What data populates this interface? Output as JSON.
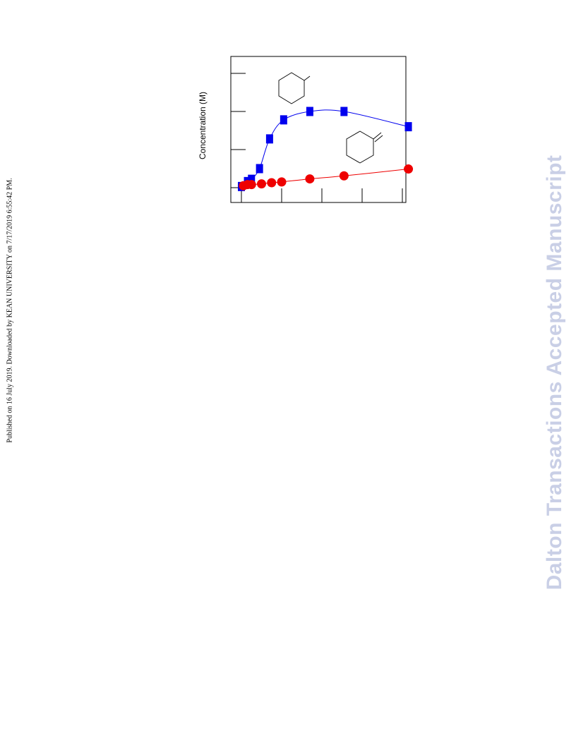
{
  "side_note": "Published on 16 July 2019. Downloaded by KEAN UNIVERSITY on 7/17/2019 6:55:42 PM.",
  "watermark": "Dalton Transactions Accepted Manuscript",
  "colors": {
    "series_blue": "#0000ee",
    "series_red": "#ee0000",
    "watermark": "#c9cfe6"
  },
  "chart_data": {
    "type": "scatter",
    "title": "",
    "xlabel": "",
    "ylabel": "Concentration (M)",
    "xlim": [
      0,
      42
    ],
    "ylim": [
      0,
      0.35
    ],
    "x_ticks": [
      0,
      10,
      20,
      30,
      40
    ],
    "y_ticks": [
      0,
      0.1,
      0.2,
      0.3
    ],
    "grid": false,
    "legend": "none",
    "annotations": [
      "methylcyclohexane structure",
      "methylenecyclohexane structure"
    ],
    "series": [
      {
        "marker": "square",
        "color": "#0000ee",
        "x": [
          0,
          1.5,
          2.5,
          4.5,
          7,
          10.5,
          17,
          25.5,
          41.5
        ],
        "y": [
          0.003,
          0.016,
          0.022,
          0.05,
          0.128,
          0.178,
          0.2,
          0.2,
          0.16
        ]
      },
      {
        "marker": "circle",
        "color": "#ee0000",
        "x": [
          0.5,
          1.5,
          2.5,
          5,
          7.5,
          10,
          17,
          25.5,
          41.5
        ],
        "y": [
          0.005,
          0.008,
          0.008,
          0.01,
          0.013,
          0.015,
          0.023,
          0.031,
          0.049
        ]
      }
    ]
  }
}
